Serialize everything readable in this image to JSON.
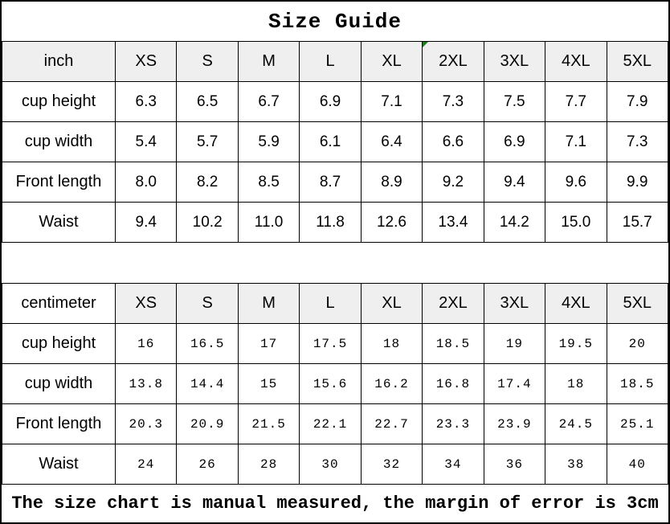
{
  "title": "Size Guide",
  "footer_note": "The size chart is manual measured, the margin of error is 3cm",
  "tables": [
    {
      "unit_label": "inch",
      "unit_cell_shaded": true,
      "error_indicator_size": "2XL",
      "sizes": [
        "XS",
        "S",
        "M",
        "L",
        "XL",
        "2XL",
        "3XL",
        "4XL",
        "5XL"
      ],
      "rows": [
        {
          "label": "cup height",
          "values": [
            "6.3",
            "6.5",
            "6.7",
            "6.9",
            "7.1",
            "7.3",
            "7.5",
            "7.7",
            "7.9"
          ]
        },
        {
          "label": "cup width",
          "values": [
            "5.4",
            "5.7",
            "5.9",
            "6.1",
            "6.4",
            "6.6",
            "6.9",
            "7.1",
            "7.3"
          ]
        },
        {
          "label": "Front length",
          "values": [
            "8.0",
            "8.2",
            "8.5",
            "8.7",
            "8.9",
            "9.2",
            "9.4",
            "9.6",
            "9.9"
          ]
        },
        {
          "label": "Waist",
          "values": [
            "9.4",
            "10.2",
            "11.0",
            "11.8",
            "12.6",
            "13.4",
            "14.2",
            "15.0",
            "15.7"
          ]
        }
      ]
    },
    {
      "unit_label": "centimeter",
      "unit_cell_shaded": false,
      "error_indicator_size": null,
      "sizes": [
        "XS",
        "S",
        "M",
        "L",
        "XL",
        "2XL",
        "3XL",
        "4XL",
        "5XL"
      ],
      "rows": [
        {
          "label": "cup height",
          "values": [
            "16",
            "16.5",
            "17",
            "17.5",
            "18",
            "18.5",
            "19",
            "19.5",
            "20"
          ]
        },
        {
          "label": "cup width",
          "values": [
            "13.8",
            "14.4",
            "15",
            "15.6",
            "16.2",
            "16.8",
            "17.4",
            "18",
            "18.5"
          ]
        },
        {
          "label": "Front length",
          "values": [
            "20.3",
            "20.9",
            "21.5",
            "22.1",
            "22.7",
            "23.3",
            "23.9",
            "24.5",
            "25.1"
          ]
        },
        {
          "label": "Waist",
          "values": [
            "24",
            "26",
            "28",
            "30",
            "32",
            "34",
            "36",
            "38",
            "40"
          ]
        }
      ]
    }
  ],
  "colors": {
    "header_bg": "#efefef",
    "border": "#000000",
    "text": "#000000",
    "flag_green": "#1e7e1e"
  }
}
